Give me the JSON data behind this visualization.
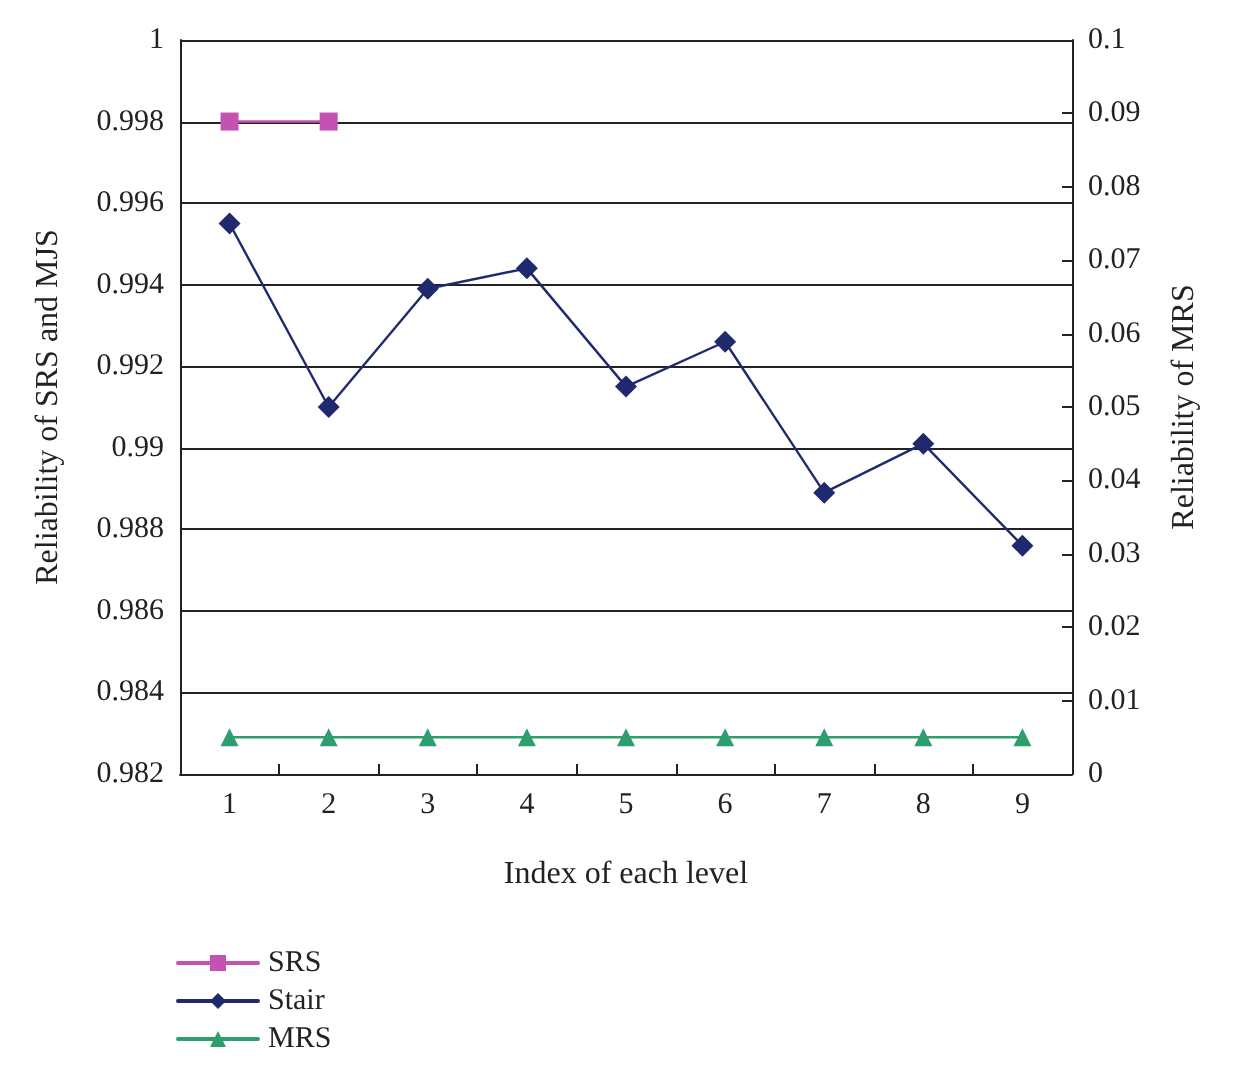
{
  "chart_data": {
    "type": "line",
    "xlabel": "Index of each level",
    "ylabel": "Reliability of SRS and MJS",
    "y2label": "Reliability of MRS",
    "categories": [
      "1",
      "2",
      "3",
      "4",
      "5",
      "6",
      "7",
      "8",
      "9"
    ],
    "series": [
      {
        "name": "SRS",
        "color": "#c452b0",
        "marker": "square",
        "values": [
          0.998,
          0.998,
          null,
          null,
          null,
          null,
          null,
          null,
          null
        ]
      },
      {
        "name": "Stair",
        "color": "#1f2a6e",
        "marker": "diamond",
        "values": [
          0.9955,
          0.991,
          0.9939,
          0.9944,
          0.9915,
          0.9926,
          0.9889,
          0.9901,
          0.9876
        ]
      },
      {
        "name": "MRS",
        "color": "#2e9e6e",
        "marker": "triangle",
        "axis": "y2",
        "values": [
          0.005,
          0.005,
          0.005,
          0.005,
          0.005,
          0.005,
          0.005,
          0.005,
          0.005
        ]
      }
    ],
    "ylim": [
      0.982,
      1
    ],
    "yticks": [
      0.982,
      0.984,
      0.986,
      0.988,
      0.99,
      0.992,
      0.994,
      0.996,
      0.998,
      1
    ],
    "y2lim": [
      0,
      0.1
    ],
    "y2ticks": [
      0,
      0.01,
      0.02,
      0.03,
      0.04,
      0.05,
      0.06,
      0.07,
      0.08,
      0.09,
      0.1
    ],
    "grid": "y",
    "legend": "bottom left",
    "line_style": "solid"
  }
}
